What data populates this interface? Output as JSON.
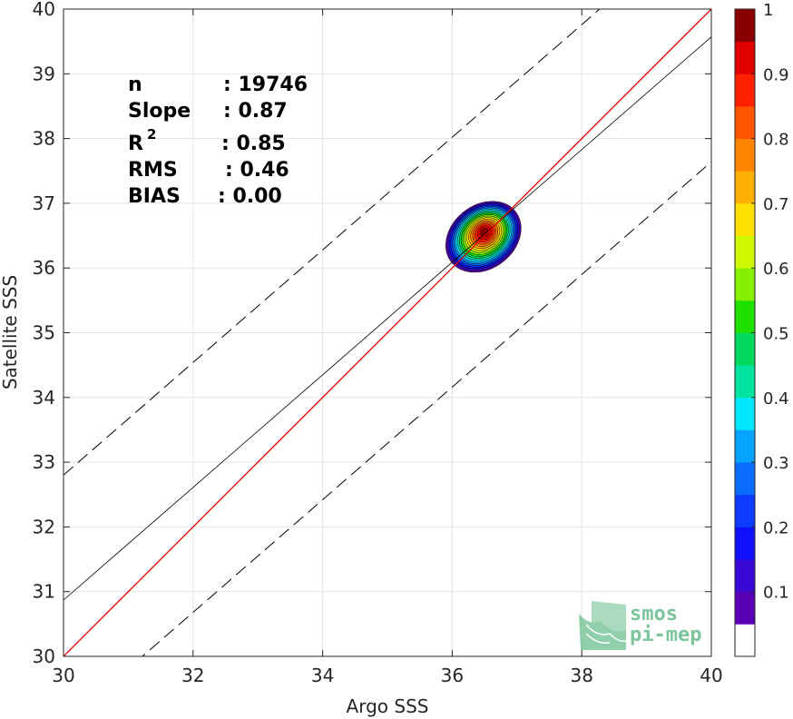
{
  "chart_data": {
    "type": "scatter",
    "subtype": "2d-density-contour",
    "title": "",
    "xlabel": "Argo SSS",
    "ylabel": "Satellite SSS",
    "xlim": [
      30,
      40
    ],
    "ylim": [
      30,
      40
    ],
    "xticks": [
      30,
      32,
      34,
      36,
      38,
      40
    ],
    "yticks": [
      30,
      31,
      32,
      33,
      34,
      35,
      36,
      37,
      38,
      39,
      40
    ],
    "grid": true,
    "stats": [
      {
        "label": "n",
        "sep": ": ",
        "value": "19746"
      },
      {
        "label": "Slope",
        "sep": ": ",
        "value": "0.87"
      },
      {
        "label": "R",
        "sup": "2",
        "sep": ": ",
        "value": "0.85"
      },
      {
        "label": "RMS",
        "sep": ": ",
        "value": "0.46"
      },
      {
        "label": "BIAS",
        "sep": ": ",
        "value": "0.00"
      }
    ],
    "lines": {
      "identity": {
        "slope": 1.0,
        "intercept": 0.0,
        "color": "#e00000"
      },
      "fit": {
        "slope": 0.87,
        "intercept": 4.77,
        "color": "#000000"
      },
      "envelope_offset": 1.93
    },
    "density_center": {
      "x": 36.5,
      "y": 36.55
    },
    "density_levels": [
      0.05,
      0.1,
      0.15,
      0.2,
      0.25,
      0.3,
      0.35,
      0.4,
      0.45,
      0.5,
      0.55,
      0.6,
      0.65,
      0.7,
      0.75,
      0.8,
      0.85,
      0.9,
      0.95
    ],
    "colorbar": {
      "min": 0,
      "max": 1,
      "ticks": [
        "0.1",
        "0.2",
        "0.3",
        "0.4",
        "0.5",
        "0.6",
        "0.7",
        "0.8",
        "0.9",
        "1"
      ],
      "colors": [
        "#ffffff",
        "#5a00b4",
        "#3a08d4",
        "#1010ff",
        "#0c3cff",
        "#0a6cff",
        "#06a4ff",
        "#00e6ff",
        "#00e4a0",
        "#00d860",
        "#20e000",
        "#86f000",
        "#d0f800",
        "#ffe000",
        "#ffb000",
        "#ff8400",
        "#ff5400",
        "#ff2000",
        "#e00000",
        "#8a0000"
      ]
    },
    "watermark": {
      "line1": "smos",
      "line2": "pi-mep",
      "color": "#7cc49c"
    }
  }
}
